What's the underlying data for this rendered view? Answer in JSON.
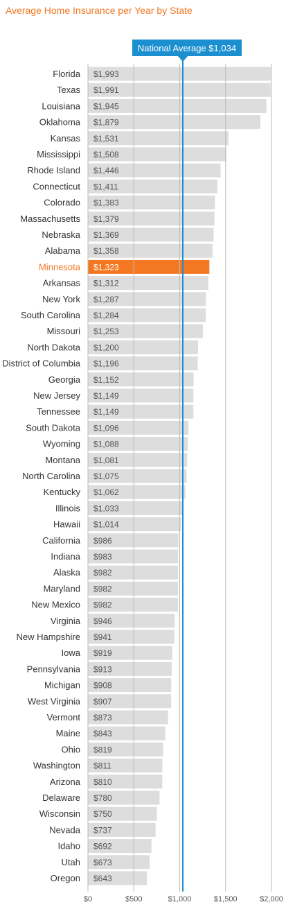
{
  "chart_data": {
    "type": "bar",
    "orientation": "horizontal",
    "title": "Average Home Insurance per Year by State",
    "categories": [
      "Florida",
      "Texas",
      "Louisiana",
      "Oklahoma",
      "Kansas",
      "Mississippi",
      "Rhode Island",
      "Connecticut",
      "Colorado",
      "Massachusetts",
      "Nebraska",
      "Alabama",
      "Minnesota",
      "Arkansas",
      "New York",
      "South Carolina",
      "Missouri",
      "North Dakota",
      "District of Columbia",
      "Georgia",
      "New Jersey",
      "Tennessee",
      "South Dakota",
      "Wyoming",
      "Montana",
      "North Carolina",
      "Kentucky",
      "Illinois",
      "Hawaii",
      "California",
      "Indiana",
      "Alaska",
      "Maryland",
      "New Mexico",
      "Virginia",
      "New Hampshire",
      "Iowa",
      "Pennsylvania",
      "Michigan",
      "West Virginia",
      "Vermont",
      "Maine",
      "Ohio",
      "Washington",
      "Arizona",
      "Delaware",
      "Wisconsin",
      "Nevada",
      "Idaho",
      "Utah",
      "Oregon"
    ],
    "values": [
      1993,
      1991,
      1945,
      1879,
      1531,
      1508,
      1446,
      1411,
      1383,
      1379,
      1369,
      1358,
      1323,
      1312,
      1287,
      1284,
      1253,
      1200,
      1196,
      1152,
      1149,
      1149,
      1096,
      1088,
      1081,
      1075,
      1062,
      1033,
      1014,
      986,
      983,
      982,
      982,
      982,
      946,
      941,
      919,
      913,
      908,
      907,
      873,
      843,
      819,
      811,
      810,
      780,
      750,
      737,
      692,
      673,
      643
    ],
    "value_labels": [
      "$1,993",
      "$1,991",
      "$1,945",
      "$1,879",
      "$1,531",
      "$1,508",
      "$1,446",
      "$1,411",
      "$1,383",
      "$1,379",
      "$1,369",
      "$1,358",
      "$1,323",
      "$1,312",
      "$1,287",
      "$1,284",
      "$1,253",
      "$1,200",
      "$1,196",
      "$1,152",
      "$1,149",
      "$1,149",
      "$1,096",
      "$1,088",
      "$1,081",
      "$1,075",
      "$1,062",
      "$1,033",
      "$1,014",
      "$986",
      "$983",
      "$982",
      "$982",
      "$982",
      "$946",
      "$941",
      "$919",
      "$913",
      "$908",
      "$907",
      "$873",
      "$843",
      "$819",
      "$811",
      "$810",
      "$780",
      "$750",
      "$737",
      "$692",
      "$673",
      "$643"
    ],
    "highlight": "Minnesota",
    "reference_line": {
      "value": 1034,
      "label": "National Average $1,034"
    },
    "xlim": [
      0,
      2000
    ],
    "xticks": [
      0,
      500,
      1000,
      1500,
      2000
    ],
    "xtick_labels": [
      "$0",
      "$500",
      "$1,000",
      "$1,500",
      "$2,000"
    ],
    "xlabel": "",
    "ylabel": "",
    "grid": true,
    "colors": {
      "bar": "#dddddd",
      "highlight_bar": "#f47721",
      "highlight_text": "#f47721",
      "reference": "#1b8fcf",
      "label_text": "#333333",
      "value_text": "#555555",
      "value_text_on_highlight": "#ffffff",
      "grid": "#bbbbbb",
      "title": "#f47721"
    }
  }
}
